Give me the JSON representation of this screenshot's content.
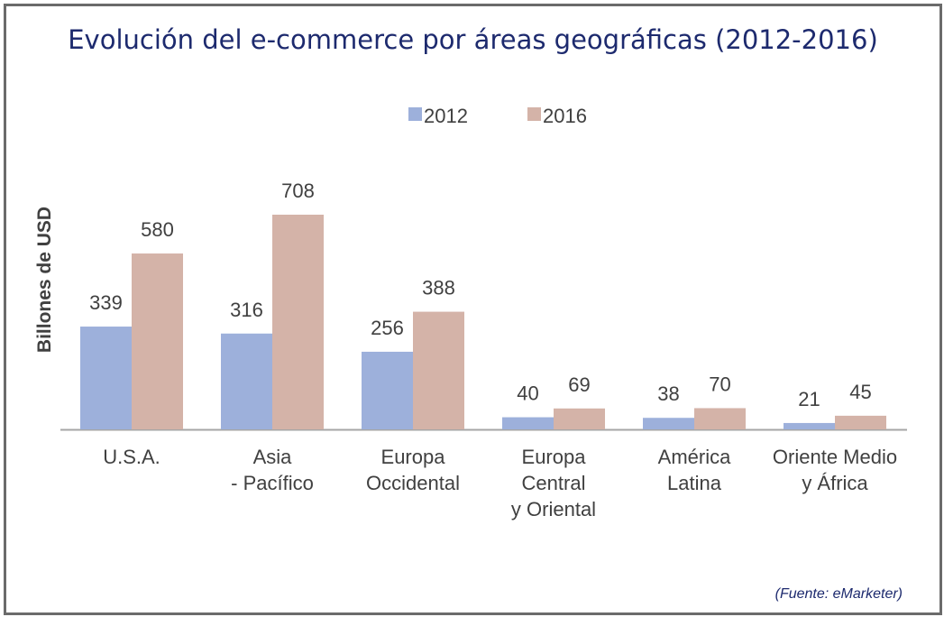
{
  "title": "Evolución del e-commerce por áreas geográficas (2012-2016)",
  "source": "(Fuente: eMarketer)",
  "colors": {
    "2012": "#9db0db",
    "2016": "#d4b3a8",
    "axis": "#a6a6a6",
    "text": "#404040",
    "title": "#1d2a6e"
  },
  "chart_data": {
    "type": "bar",
    "title": "Evolución del e-commerce por áreas geográficas (2012-2016)",
    "ylabel": "Billones de USD",
    "xlabel": "",
    "ylim": [
      0,
      708
    ],
    "grid": false,
    "legend_position": "top",
    "categories": [
      [
        "U.S.A."
      ],
      [
        "Asia",
        "- Pacífico"
      ],
      [
        "Europa",
        "Occidental"
      ],
      [
        "Europa",
        "Central",
        "y Oriental"
      ],
      [
        "América",
        "Latina"
      ],
      [
        "Oriente Medio",
        "y África"
      ]
    ],
    "series": [
      {
        "name": "2012",
        "values": [
          339,
          316,
          256,
          40,
          38,
          21
        ]
      },
      {
        "name": "2016",
        "values": [
          580,
          708,
          388,
          69,
          70,
          45
        ]
      }
    ]
  }
}
